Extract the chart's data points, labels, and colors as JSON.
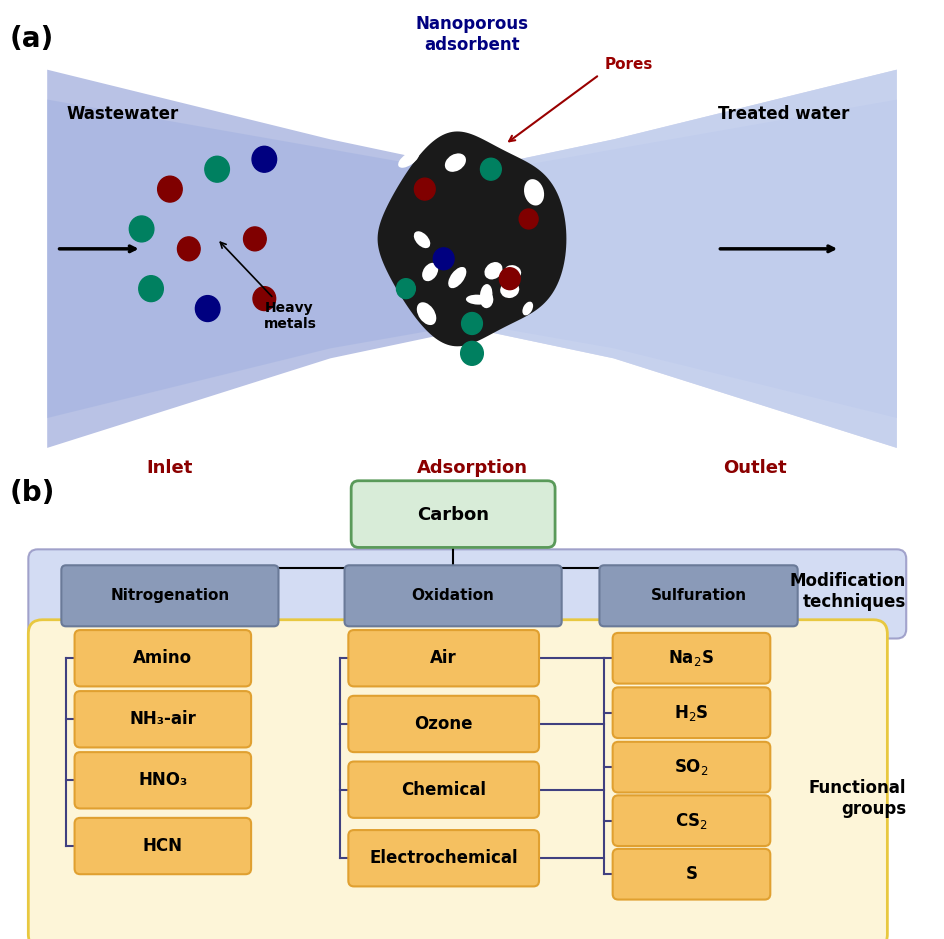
{
  "panel_a_label": "(a)",
  "panel_b_label": "(b)",
  "wastewater_text": "Wastewater",
  "treated_water_text": "Treated water",
  "heavy_metals_text": "Heavy\nmetals",
  "nanoporous_text": "Nanoporous\nadsorbent",
  "pores_text": "Pores",
  "inlet_text": "Inlet",
  "adsorption_text": "Adsorption",
  "outlet_text": "Outlet",
  "carbon_text": "Carbon",
  "mod_tech_text": "Modification\ntechniques",
  "func_groups_text": "Functional\ngroups",
  "col1_header": "Nitrogenation",
  "col2_header": "Oxidation",
  "col3_header": "Sulfuration",
  "col1_items": [
    "Amino",
    "NH₃-air",
    "HNO₃",
    "HCN"
  ],
  "col2_items": [
    "Air",
    "Ozone",
    "Chemical",
    "Electrochemical"
  ],
  "col3_items": [
    "Na₂S",
    "H₂S",
    "SO₂",
    "CS₂",
    "S"
  ],
  "bg_color": "#ffffff",
  "blue_bg": "#b0b8e8",
  "light_blue_bg": "#c8d4f0",
  "green_box_bg": "#d8ecd8",
  "green_box_edge": "#5a9a5a",
  "gray_box_bg": "#8a9ab8",
  "orange_box_bg": "#f5c060",
  "orange_box_edge": "#e0a030",
  "yellow_area_bg": "#fdf5d8",
  "yellow_area_edge": "#e8c840",
  "purple_area_edge": "#9090c0",
  "dot_colors": [
    "#800000",
    "#008060",
    "#000080",
    "#600060"
  ],
  "line_color": "#000000",
  "arrow_color": "#000000",
  "pores_arrow_color": "#990000",
  "label_color": "#8b0000",
  "title_color": "#000080"
}
